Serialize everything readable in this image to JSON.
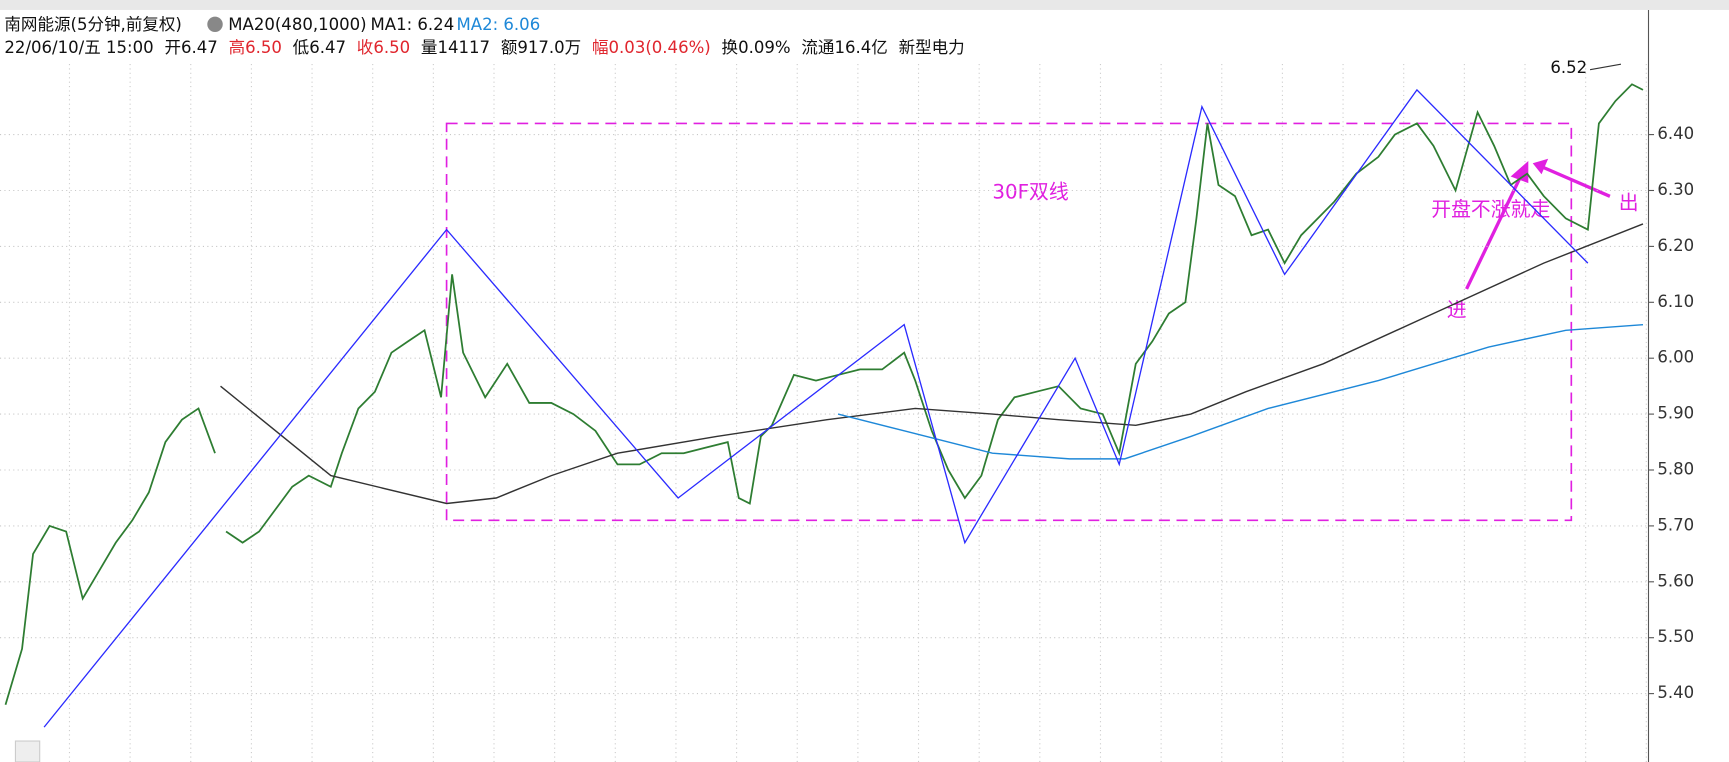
{
  "header": {
    "title": "南网能源(5分钟,前复权)",
    "indicator": "MA20(480,1000)",
    "ma1": "MA1: 6.24",
    "ma2": "MA2: 6.06",
    "quote": [
      "22/06/10/五 15:00",
      "开6.47",
      "高6.50",
      "低6.47",
      "收6.50",
      "量14117",
      "额917.0万",
      "幅0.03(0.46%)",
      "换0.09%",
      "流通16.4亿",
      "新型电力"
    ]
  },
  "annotations": [
    "30F双线",
    "开盘不涨就走",
    "进",
    "出"
  ],
  "chart_data": {
    "type": "line",
    "xlim": [
      0,
      299
    ],
    "ylim": [
      5.3,
      6.62
    ],
    "yticks": [
      {
        "value": 6.4,
        "label": "6.40"
      },
      {
        "value": 6.3,
        "label": "6.30"
      },
      {
        "value": 6.2,
        "label": "6.20"
      },
      {
        "value": 6.1,
        "label": "6.10"
      },
      {
        "value": 6.0,
        "label": "6.00"
      },
      {
        "value": 5.9,
        "label": "5.90"
      },
      {
        "value": 5.8,
        "label": "5.80"
      },
      {
        "value": 5.7,
        "label": "5.70"
      },
      {
        "value": 5.6,
        "label": "5.60"
      },
      {
        "value": 5.5,
        "label": "5.50"
      },
      {
        "value": 5.4,
        "label": "5.40"
      }
    ],
    "grid": true,
    "high_label": 6.52,
    "series": [
      {
        "color": "#2e7d32",
        "x": [
          1,
          4,
          6,
          9,
          12,
          15,
          18,
          21,
          24,
          27,
          30,
          33,
          36,
          39,
          40,
          41,
          44,
          47,
          50,
          53,
          56,
          60,
          62,
          65,
          68,
          71,
          74,
          77,
          80,
          82,
          84,
          88,
          92,
          96,
          100,
          104,
          108,
          112,
          116,
          120,
          124,
          128,
          132,
          134,
          136,
          138,
          140,
          144,
          148,
          152,
          156,
          160,
          164,
          166,
          169,
          172,
          175,
          178,
          181,
          184,
          188,
          192,
          196,
          200,
          203,
          206,
          209,
          212,
          215,
          217,
          219,
          221,
          224,
          227,
          230,
          233,
          236,
          239,
          242,
          246,
          250,
          253,
          257,
          260,
          264,
          268,
          271,
          274,
          277,
          280,
          284,
          288,
          290,
          293,
          296,
          298
        ],
        "values": [
          5.38,
          5.48,
          5.65,
          5.7,
          5.69,
          5.57,
          5.62,
          5.67,
          5.71,
          5.76,
          5.85,
          5.89,
          5.91,
          5.83,
          null,
          5.69,
          5.67,
          5.69,
          5.73,
          5.77,
          5.79,
          5.77,
          5.83,
          5.91,
          5.94,
          6.01,
          6.03,
          6.05,
          5.93,
          6.15,
          6.01,
          5.93,
          5.99,
          5.92,
          5.92,
          5.9,
          5.87,
          5.81,
          5.81,
          5.83,
          5.83,
          5.84,
          5.85,
          5.75,
          5.74,
          5.86,
          5.88,
          5.97,
          5.96,
          5.97,
          5.98,
          5.98,
          6.01,
          5.96,
          5.87,
          5.8,
          5.75,
          5.79,
          5.89,
          5.93,
          5.94,
          5.95,
          5.91,
          5.9,
          5.83,
          5.99,
          6.03,
          6.08,
          6.1,
          6.25,
          6.42,
          6.31,
          6.29,
          6.22,
          6.23,
          6.17,
          6.22,
          6.25,
          6.28,
          6.33,
          6.36,
          6.4,
          6.42,
          6.38,
          6.3,
          6.44,
          6.38,
          6.31,
          6.33,
          6.29,
          6.25,
          6.23,
          6.42,
          6.46,
          6.49,
          6.48
        ]
      },
      {
        "color": "#333333",
        "x": [
          40,
          60,
          81,
          90,
          100,
          112,
          130,
          150,
          166,
          180,
          192,
          206,
          216,
          226,
          240,
          260,
          280,
          298
        ],
        "values": [
          5.95,
          5.79,
          5.74,
          5.75,
          5.79,
          5.83,
          5.86,
          5.89,
          5.91,
          5.9,
          5.89,
          5.88,
          5.9,
          5.94,
          5.99,
          6.08,
          6.17,
          6.24
        ]
      },
      {
        "color": "#1e88d8",
        "x": [
          152,
          164,
          180,
          194,
          204,
          216,
          230,
          250,
          270,
          284,
          298
        ],
        "values": [
          5.9,
          5.87,
          5.83,
          5.82,
          5.82,
          5.86,
          5.91,
          5.96,
          6.02,
          6.05,
          6.06
        ]
      }
    ],
    "trend_lines": {
      "color": "#2b2bff",
      "x": [
        8,
        81,
        123,
        164,
        175,
        195,
        203,
        218,
        233,
        257,
        288
      ],
      "values": [
        5.34,
        6.23,
        5.75,
        6.06,
        5.67,
        6.0,
        5.81,
        6.45,
        6.15,
        6.48,
        6.17
      ]
    },
    "box": {
      "color": "#e020e0",
      "x": [
        81,
        285
      ],
      "values": [
        5.71,
        6.42
      ]
    }
  }
}
